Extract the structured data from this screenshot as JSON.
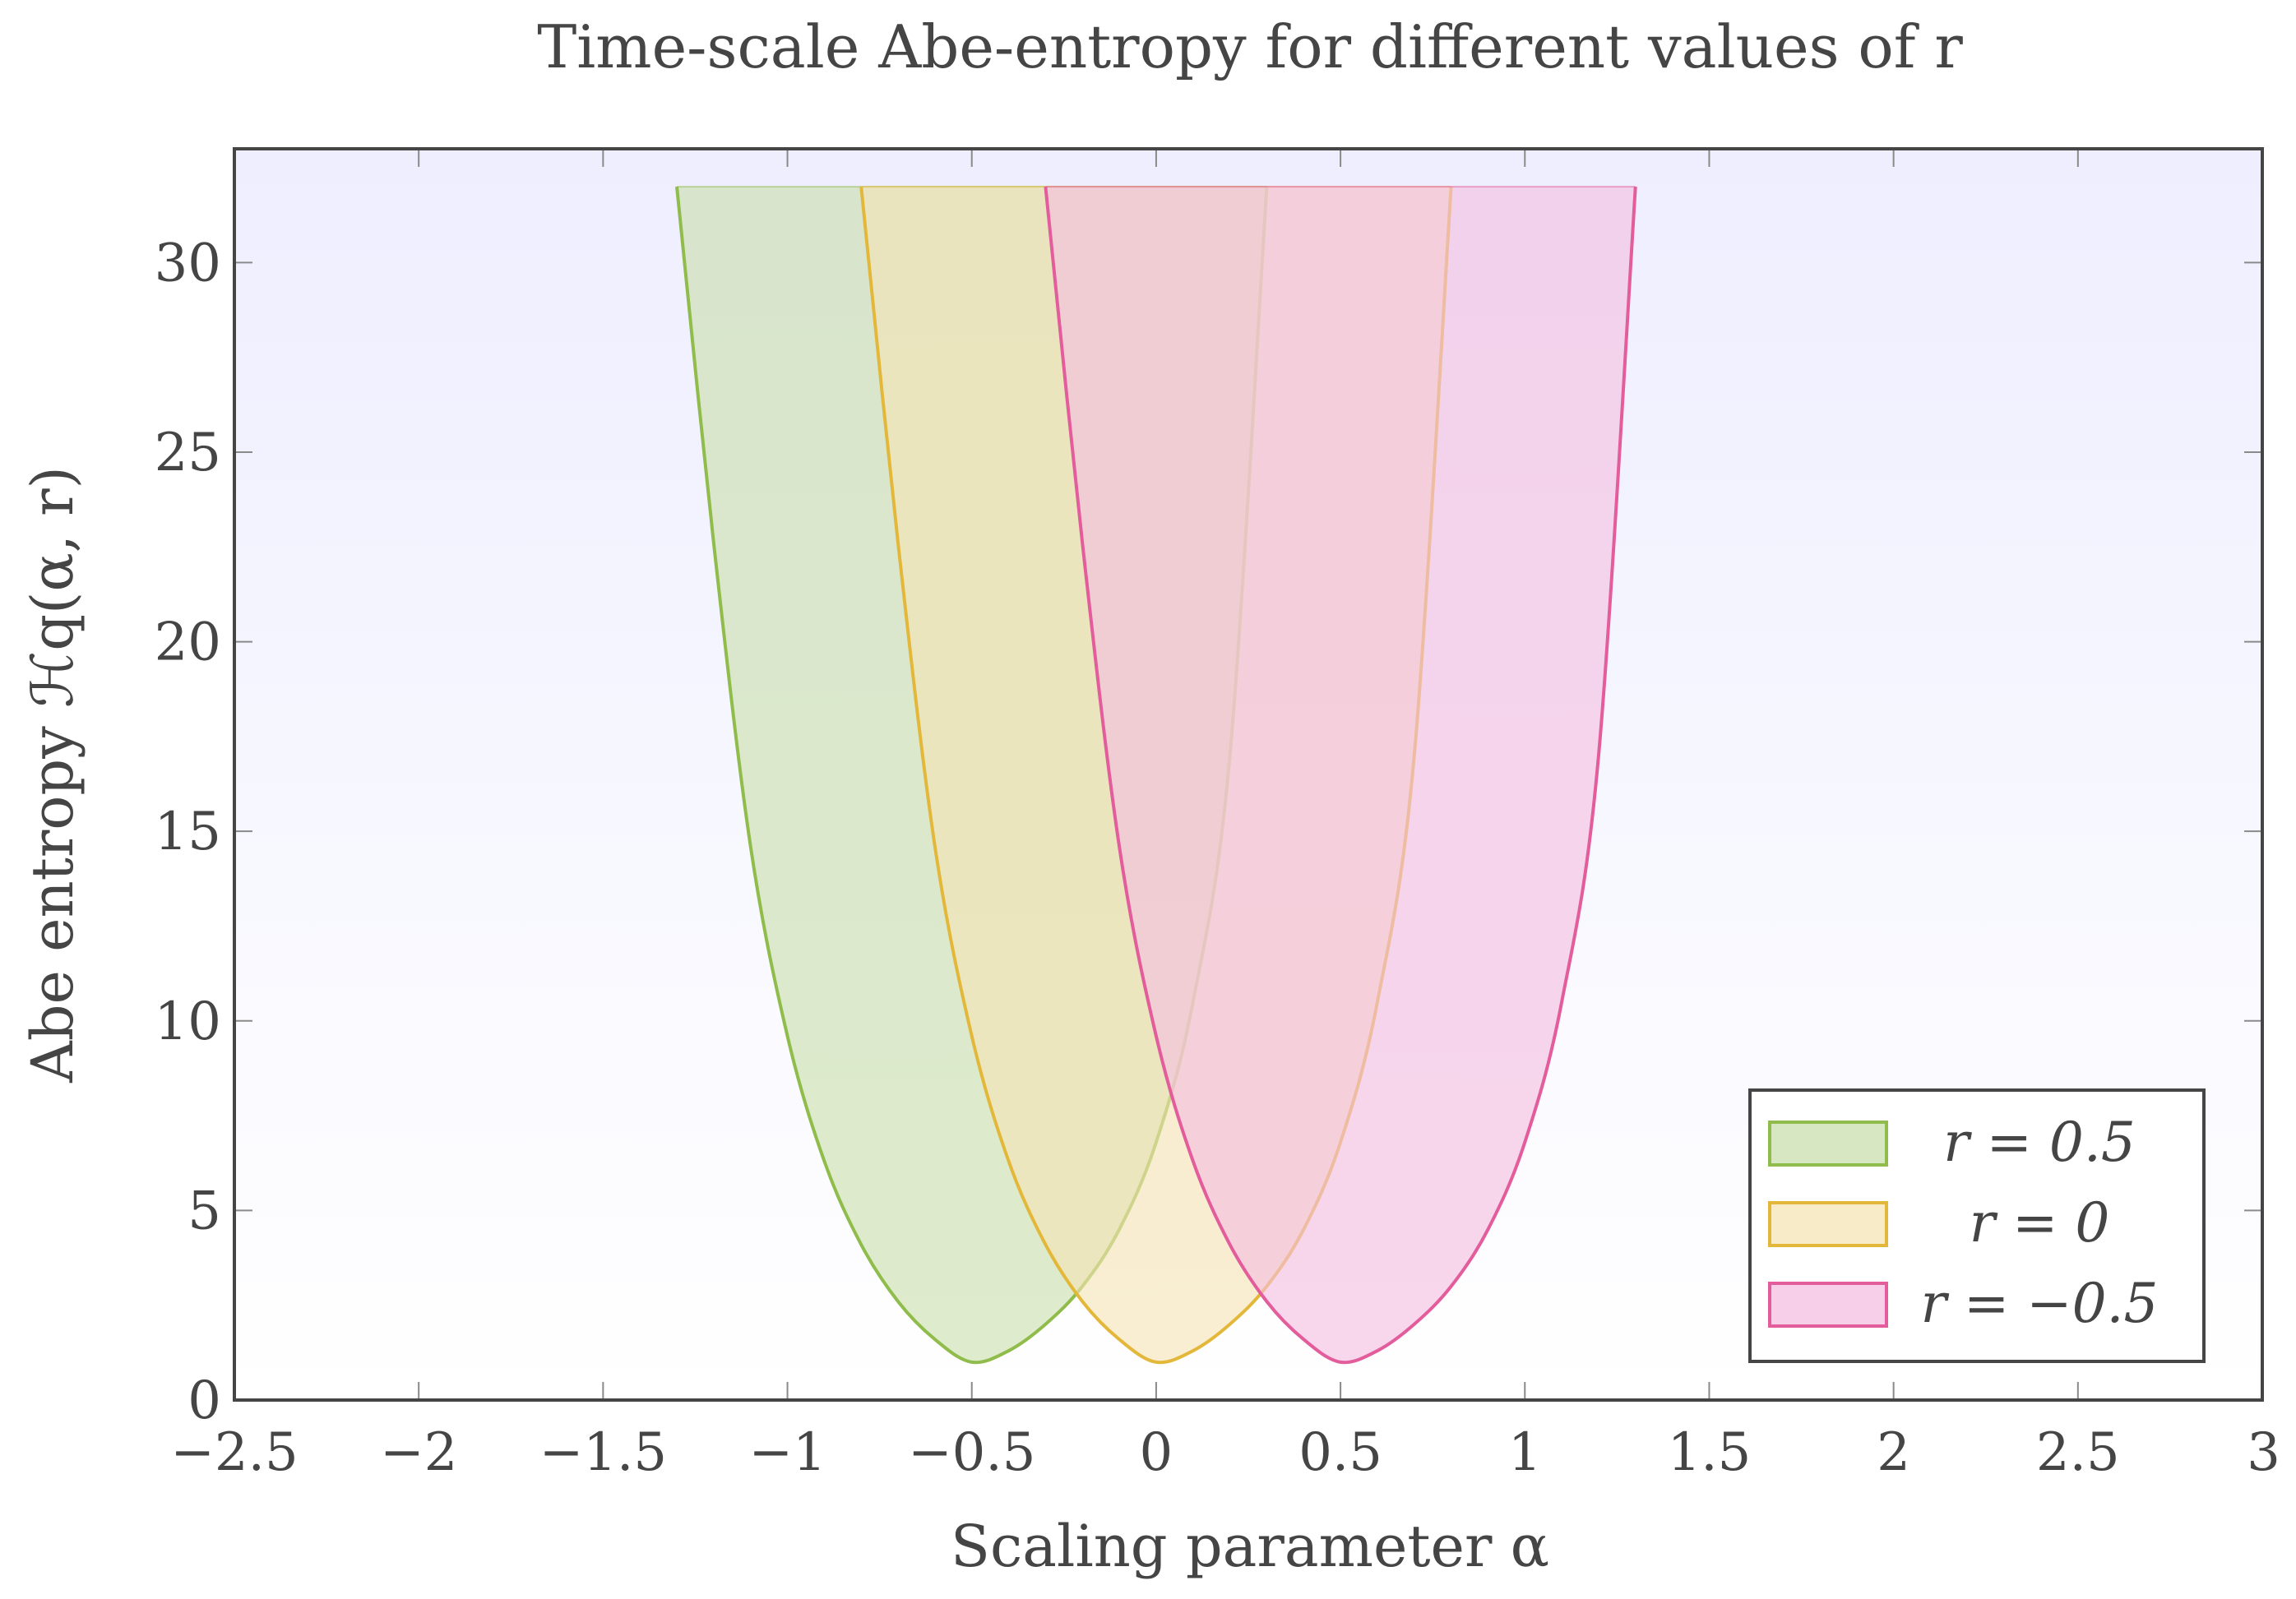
{
  "chart_data": {
    "type": "area",
    "title": "Time-scale Abe-entropy for different values of r",
    "xlabel": "Scaling parameter α",
    "ylabel": "Abe entropy ℋq(α, r)",
    "xlim": [
      -2.5,
      3
    ],
    "ylim": [
      0,
      33
    ],
    "x_ticks": [
      -2.5,
      -2,
      -1.5,
      -1,
      -0.5,
      0,
      0.5,
      1,
      1.5,
      2,
      2.5,
      3
    ],
    "x_tick_labels": [
      "−2.5",
      "−2",
      "−1.5",
      "−1",
      "−0.5",
      "0",
      "0.5",
      "1",
      "1.5",
      "2",
      "2.5",
      "3"
    ],
    "y_ticks": [
      0,
      5,
      10,
      15,
      20,
      25,
      30
    ],
    "y_tick_labels": [
      "0",
      "5",
      "10",
      "15",
      "20",
      "25",
      "30"
    ],
    "grid": false,
    "legend_position": "bottom-right",
    "series": [
      {
        "name": "r = 0.5",
        "color": "#8fbc4a",
        "fill": "#c9dfac",
        "points": [
          [
            -1.3,
            32
          ],
          [
            -1.2,
            22.6
          ],
          [
            -1.1,
            14.6
          ],
          [
            -1.0,
            9.6
          ],
          [
            -0.9,
            6.3
          ],
          [
            -0.8,
            4.1
          ],
          [
            -0.7,
            2.6
          ],
          [
            -0.6,
            1.6
          ],
          [
            -0.5,
            1.0
          ],
          [
            -0.4,
            1.3
          ],
          [
            -0.3,
            2.0
          ],
          [
            -0.2,
            3.0
          ],
          [
            -0.1,
            4.5
          ],
          [
            0.0,
            6.8
          ],
          [
            0.1,
            10.5
          ],
          [
            0.2,
            17.0
          ],
          [
            0.3,
            32
          ]
        ]
      },
      {
        "name": "r = 0",
        "color": "#e3b83a",
        "fill": "#f5e4b4",
        "points": [
          [
            -0.8,
            32
          ],
          [
            -0.7,
            22.6
          ],
          [
            -0.6,
            14.6
          ],
          [
            -0.5,
            9.6
          ],
          [
            -0.4,
            6.3
          ],
          [
            -0.3,
            4.1
          ],
          [
            -0.2,
            2.6
          ],
          [
            -0.1,
            1.6
          ],
          [
            0.0,
            1.0
          ],
          [
            0.1,
            1.3
          ],
          [
            0.2,
            2.0
          ],
          [
            0.3,
            3.0
          ],
          [
            0.4,
            4.5
          ],
          [
            0.5,
            6.8
          ],
          [
            0.6,
            10.5
          ],
          [
            0.7,
            17.0
          ],
          [
            0.8,
            32
          ]
        ]
      },
      {
        "name": "r = −0.5",
        "color": "#e35c9c",
        "fill": "#f4bfe0",
        "points": [
          [
            -0.3,
            32
          ],
          [
            -0.2,
            22.6
          ],
          [
            -0.1,
            14.6
          ],
          [
            0.0,
            9.6
          ],
          [
            0.1,
            6.3
          ],
          [
            0.2,
            4.1
          ],
          [
            0.3,
            2.6
          ],
          [
            0.4,
            1.6
          ],
          [
            0.5,
            1.0
          ],
          [
            0.6,
            1.3
          ],
          [
            0.7,
            2.0
          ],
          [
            0.8,
            3.0
          ],
          [
            0.9,
            4.5
          ],
          [
            1.0,
            6.8
          ],
          [
            1.1,
            10.5
          ],
          [
            1.2,
            17.0
          ],
          [
            1.3,
            32
          ]
        ]
      }
    ],
    "plot_background": "#eeeeff",
    "frame_color": "#454545"
  }
}
